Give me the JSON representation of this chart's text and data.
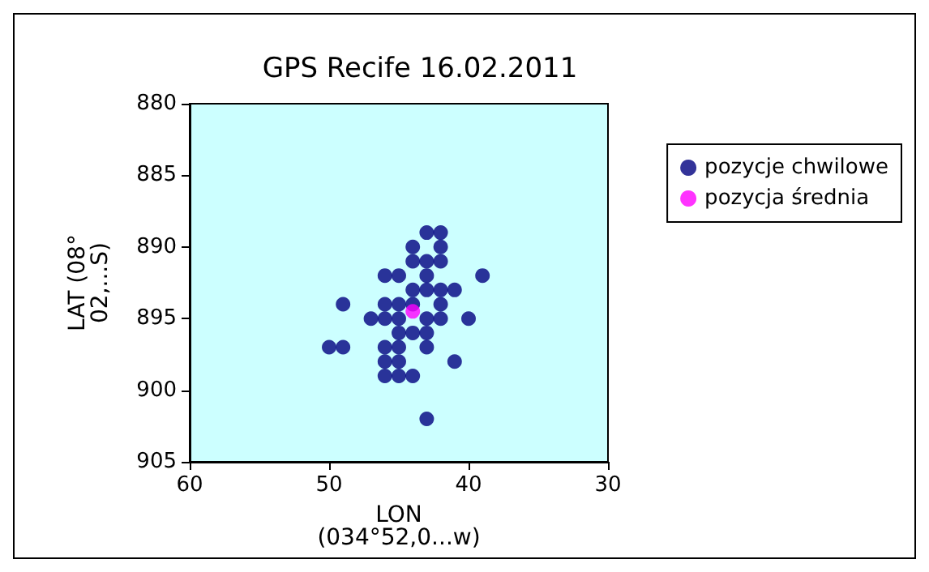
{
  "chart_data": {
    "type": "scatter",
    "title": "GPS Recife 16.02.2011",
    "xlabel": "LON\n(034°52,0...w)",
    "ylabel": "LAT (08°\n02,...S)",
    "xlim": [
      60,
      30
    ],
    "xticks": [
      60,
      50,
      40,
      30
    ],
    "ylim": [
      905,
      880
    ],
    "yticks": [
      880,
      885,
      890,
      895,
      900,
      905
    ],
    "grid": false,
    "legend": "right",
    "marker": "circle",
    "series": [
      {
        "name": "pozycje chwilowe",
        "color": "#000080",
        "x": [
          43,
          42,
          44,
          42,
          44,
          43,
          42,
          46,
          45,
          43,
          39,
          44,
          43,
          42,
          41,
          49,
          46,
          45,
          44,
          42,
          47,
          46,
          45,
          43,
          42,
          40,
          45,
          44,
          43,
          50,
          49,
          46,
          45,
          43,
          46,
          45,
          41,
          46,
          45,
          44,
          43
        ],
        "values": [
          889,
          889,
          890,
          890,
          891,
          891,
          891,
          892,
          892,
          892,
          892,
          893,
          893,
          893,
          893,
          894,
          894,
          894,
          894,
          894,
          895,
          895,
          895,
          895,
          895,
          895,
          896,
          896,
          896,
          897,
          897,
          897,
          897,
          897,
          898,
          898,
          898,
          899,
          899,
          899,
          902
        ]
      },
      {
        "name": "pozycja średnia",
        "color": "#ff00ff",
        "x": [
          44
        ],
        "values": [
          894.5
        ]
      }
    ]
  }
}
